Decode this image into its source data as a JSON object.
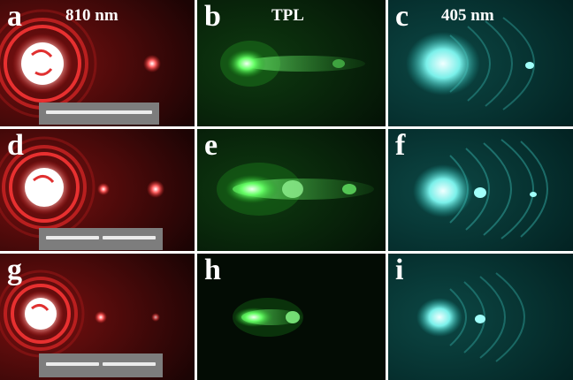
{
  "figure": {
    "column_headers": [
      "810 nm",
      "TPL",
      "405 nm"
    ],
    "panels": [
      {
        "label": "a",
        "mode": "red"
      },
      {
        "label": "b",
        "mode": "green"
      },
      {
        "label": "c",
        "mode": "cyan"
      },
      {
        "label": "d",
        "mode": "red"
      },
      {
        "label": "e",
        "mode": "green"
      },
      {
        "label": "f",
        "mode": "cyan"
      },
      {
        "label": "g",
        "mode": "red"
      },
      {
        "label": "h",
        "mode": "green"
      },
      {
        "label": "i",
        "mode": "cyan"
      }
    ],
    "colors": {
      "red_mode": "#e0302c",
      "green_mode": "#3cf03c",
      "cyan_mode": "#40e8e0",
      "sem_inset": "#7d7d7d",
      "separator": "#ffffff"
    }
  }
}
